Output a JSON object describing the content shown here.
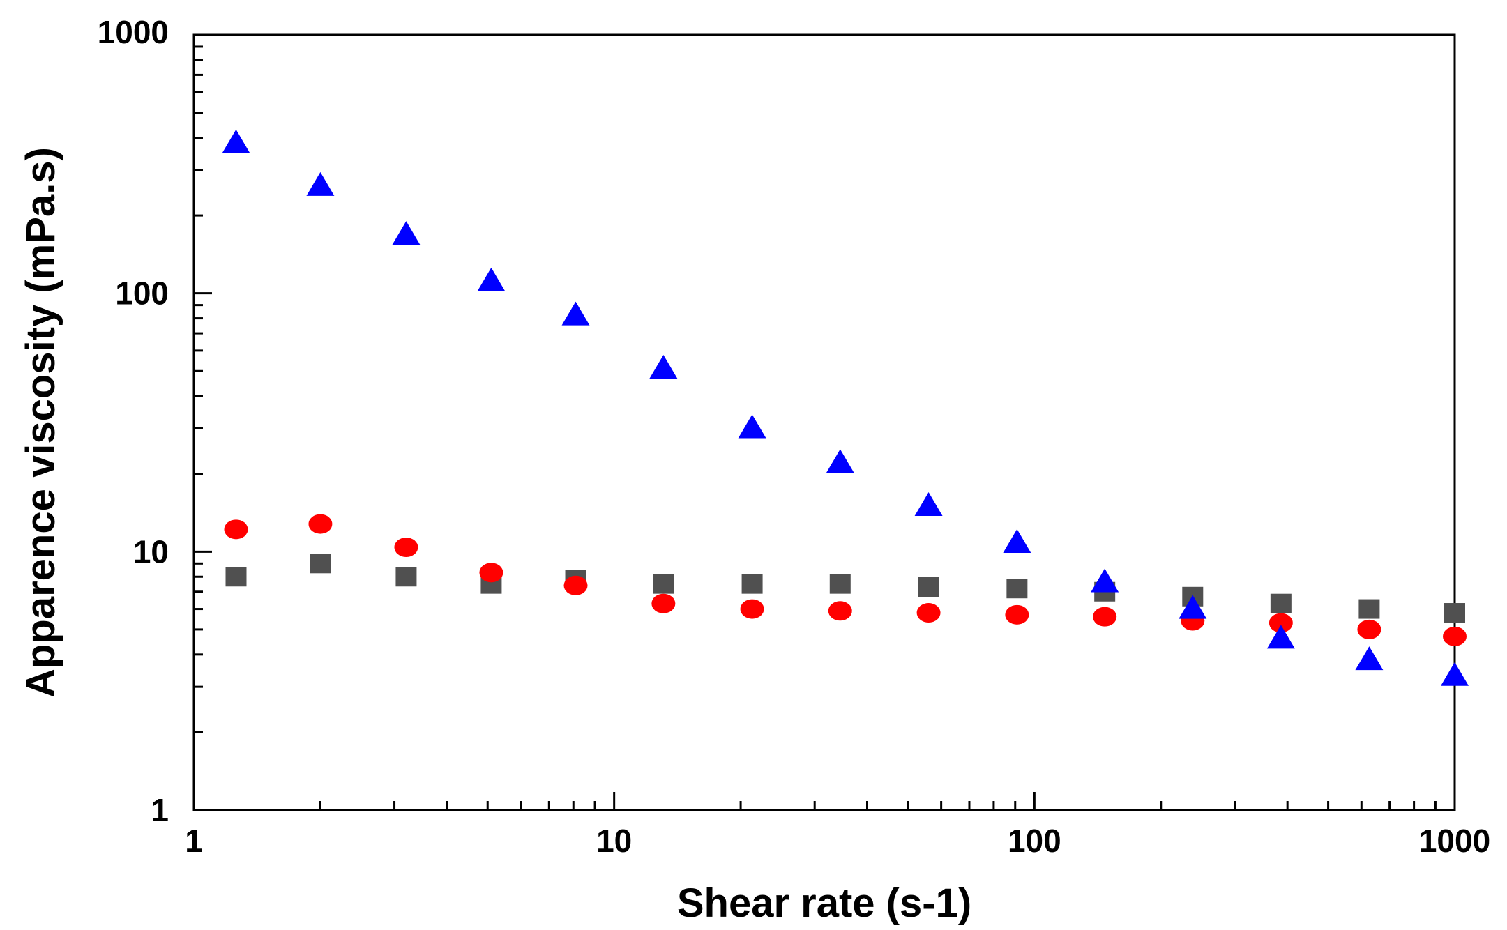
{
  "chart_data": {
    "type": "scatter",
    "title": "",
    "xlabel": "Shear rate (s-1)",
    "ylabel": "Apparence viscosity  (mPa.s)",
    "xscale": "log",
    "yscale": "log",
    "xlim": [
      1,
      1000
    ],
    "ylim": [
      1,
      1000
    ],
    "x_ticks": [
      {
        "value": 1,
        "label": "1"
      },
      {
        "value": 10,
        "label": "10"
      },
      {
        "value": 100,
        "label": "100"
      },
      {
        "value": 1000,
        "label": "1000"
      }
    ],
    "y_ticks": [
      {
        "value": 1,
        "label": "1"
      },
      {
        "value": 10,
        "label": "10"
      },
      {
        "value": 100,
        "label": "100"
      },
      {
        "value": 1000,
        "label": "1000"
      }
    ],
    "grid": false,
    "legend": "none",
    "series": [
      {
        "name": "square series",
        "marker": "square",
        "color": "#505050",
        "x": [
          1.26,
          2.0,
          3.2,
          5.1,
          8.1,
          13.1,
          21.3,
          34.5,
          56.0,
          90.9,
          147,
          238,
          386,
          626,
          1000
        ],
        "y": [
          8.0,
          9.0,
          8.0,
          7.5,
          7.8,
          7.5,
          7.5,
          7.5,
          7.3,
          7.2,
          7.0,
          6.7,
          6.3,
          6.0,
          5.8
        ]
      },
      {
        "name": "circle series",
        "marker": "circle",
        "color": "#ff0000",
        "x": [
          1.26,
          2.0,
          3.2,
          5.1,
          8.1,
          13.1,
          21.3,
          34.5,
          56.0,
          90.9,
          147,
          238,
          386,
          626,
          1000
        ],
        "y": [
          12.2,
          12.8,
          10.4,
          8.3,
          7.4,
          6.3,
          6.0,
          5.9,
          5.8,
          5.7,
          5.6,
          5.4,
          5.3,
          5.0,
          4.7
        ]
      },
      {
        "name": "triangle series",
        "marker": "triangle",
        "color": "#0000ff",
        "x": [
          1.26,
          2.0,
          3.2,
          5.1,
          8.1,
          13.1,
          21.3,
          34.5,
          56.0,
          90.9,
          147,
          238,
          386,
          626,
          1000
        ],
        "y": [
          380,
          260,
          168,
          111,
          82,
          51,
          30,
          22,
          15,
          10.8,
          7.6,
          6.0,
          4.6,
          3.8,
          3.3
        ]
      }
    ]
  }
}
